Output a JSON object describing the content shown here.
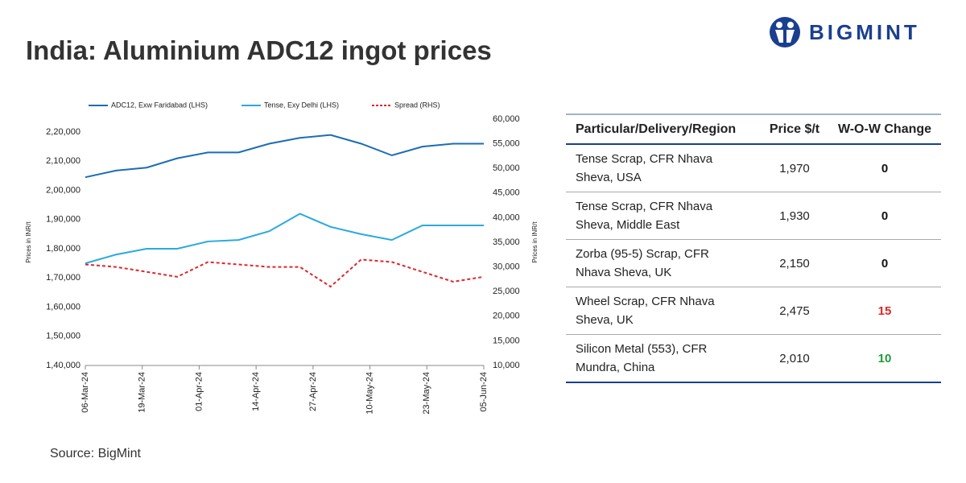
{
  "header": {
    "title": "India: Aluminium ADC12 ingot prices",
    "logo": "BIGMINT"
  },
  "chart_data": {
    "type": "line",
    "x": [
      "2024-03-06",
      "2024-03-13",
      "2024-03-20",
      "2024-03-27",
      "2024-04-03",
      "2024-04-10",
      "2024-04-17",
      "2024-04-24",
      "2024-05-01",
      "2024-05-08",
      "2024-05-15",
      "2024-05-22",
      "2024-05-29",
      "2024-06-05"
    ],
    "xlim": [
      "2024-03-06",
      "2024-06-05"
    ],
    "xticks": [
      {
        "value": "2024-03-06",
        "label": "06-Mar-24"
      },
      {
        "value": "2024-03-19",
        "label": "19-Mar-24"
      },
      {
        "value": "2024-04-01",
        "label": "01-Apr-24"
      },
      {
        "value": "2024-04-14",
        "label": "14-Apr-24"
      },
      {
        "value": "2024-04-27",
        "label": "27-Apr-24"
      },
      {
        "value": "2024-05-10",
        "label": "10-May-24"
      },
      {
        "value": "2024-05-23",
        "label": "23-May-24"
      },
      {
        "value": "2024-06-05",
        "label": "05-Jun-24"
      }
    ],
    "ylabel": "Prices in INR/t",
    "y2label": "Prices in INR/t",
    "ylim": [
      140000,
      220000
    ],
    "yticks": [
      {
        "value": 140000,
        "label": "1,40,000"
      },
      {
        "value": 150000,
        "label": "1,50,000"
      },
      {
        "value": 160000,
        "label": "1,60,000"
      },
      {
        "value": 170000,
        "label": "1,70,000"
      },
      {
        "value": 180000,
        "label": "1,80,000"
      },
      {
        "value": 190000,
        "label": "1,90,000"
      },
      {
        "value": 200000,
        "label": "2,00,000"
      },
      {
        "value": 210000,
        "label": "2,10,000"
      },
      {
        "value": 220000,
        "label": "2,20,000"
      }
    ],
    "y2lim": [
      10000,
      60000
    ],
    "y2ticks": [
      {
        "value": 10000,
        "label": "10,000"
      },
      {
        "value": 15000,
        "label": "15,000"
      },
      {
        "value": 20000,
        "label": "20,000"
      },
      {
        "value": 25000,
        "label": "25,000"
      },
      {
        "value": 30000,
        "label": "30,000"
      },
      {
        "value": 35000,
        "label": "35,000"
      },
      {
        "value": 40000,
        "label": "40,000"
      },
      {
        "value": 45000,
        "label": "45,000"
      },
      {
        "value": 50000,
        "label": "50,000"
      },
      {
        "value": 55000,
        "label": "55,000"
      },
      {
        "value": 60000,
        "label": "60,000"
      }
    ],
    "series": [
      {
        "name": "ADC12, Exw Faridabad (LHS)",
        "color": "#1b6db3",
        "values": [
          204500,
          206800,
          207800,
          211000,
          213000,
          213000,
          216000,
          218000,
          219000,
          216000,
          212000,
          215000,
          216000,
          216000
        ]
      },
      {
        "name": "Tense, Exy Delhi (LHS)",
        "color": "#2aa9e0",
        "values": [
          175000,
          178000,
          180000,
          180000,
          182500,
          183000,
          186000,
          192000,
          187500,
          185000,
          183000,
          188000,
          188000,
          188000
        ]
      },
      {
        "name": "Spread (RHS)",
        "color": "#e0262b",
        "dashed": true,
        "axis": "y2",
        "values": [
          30500,
          30000,
          29000,
          28000,
          31000,
          30500,
          30000,
          30000,
          26000,
          31500,
          31000,
          29000,
          27000,
          28000
        ]
      }
    ]
  },
  "table": {
    "columns": [
      "Particular/Delivery/Region",
      "Price $/t",
      "W-O-W Change"
    ],
    "rows": [
      {
        "item": "Tense Scrap, CFR Nhava Sheva, USA",
        "price": "1,970",
        "change": "0",
        "change_color": "#111111"
      },
      {
        "item": "Tense Scrap, CFR Nhava Sheva, Middle East",
        "price": "1,930",
        "change": "0",
        "change_color": "#111111"
      },
      {
        "item": "Zorba (95-5) Scrap, CFR Nhava Sheva, UK",
        "price": "2,150",
        "change": "0",
        "change_color": "#111111"
      },
      {
        "item": "Wheel Scrap, CFR Nhava Sheva, UK",
        "price": "2,475",
        "change": "15",
        "change_color": "#e0262b"
      },
      {
        "item": "Silicon Metal (553), CFR Mundra, China",
        "price": "2,010",
        "change": "10",
        "change_color": "#1f9a3c"
      }
    ]
  },
  "source": "Source: BigMint"
}
